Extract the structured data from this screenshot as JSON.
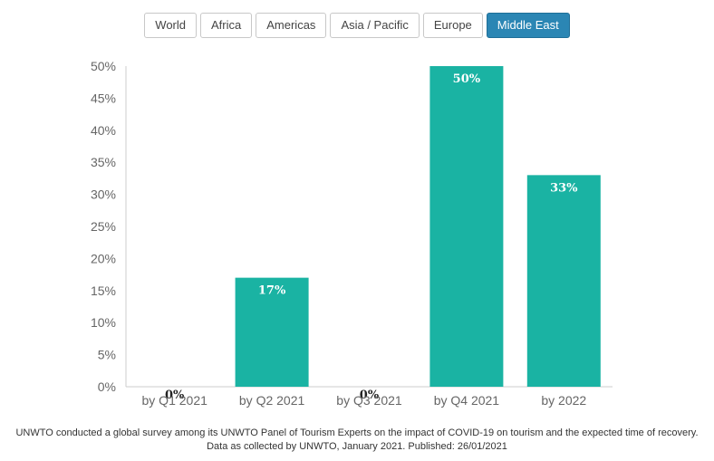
{
  "tabs": [
    {
      "label": "World",
      "active": false
    },
    {
      "label": "Africa",
      "active": false
    },
    {
      "label": "Americas",
      "active": false
    },
    {
      "label": "Asia / Pacific",
      "active": false
    },
    {
      "label": "Europe",
      "active": false
    },
    {
      "label": "Middle East",
      "active": true
    }
  ],
  "colors": {
    "bar": "#1ab3a3",
    "active_tab": "#2b86b4",
    "axis_line": "#cccccc"
  },
  "chart_data": {
    "type": "bar",
    "categories": [
      "by Q1 2021",
      "by Q2 2021",
      "by Q3 2021",
      "by Q4 2021",
      "by 2022"
    ],
    "values": [
      0,
      17,
      0,
      50,
      33
    ],
    "data_labels": [
      "0%",
      "17%",
      "0%",
      "50%",
      "33%"
    ],
    "y_ticks": [
      "0%",
      "5%",
      "10%",
      "15%",
      "20%",
      "25%",
      "30%",
      "35%",
      "40%",
      "45%",
      "50%"
    ],
    "ylim": [
      0,
      50
    ],
    "grid": false,
    "legend": "none"
  },
  "caption": {
    "line1": "UNWTO conducted a global survey among its UNWTO Panel of Tourism Experts on the impact of COVID-19 on tourism and the expected time of recovery.",
    "line2": "Data as collected by UNWTO, January 2021. Published: 26/01/2021"
  }
}
